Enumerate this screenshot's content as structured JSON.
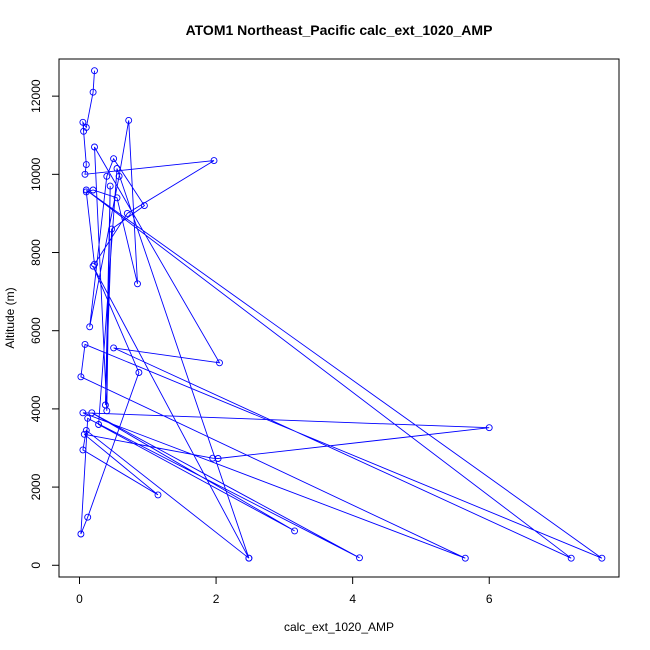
{
  "chart_data": {
    "type": "line",
    "title": "ATOM1 Northeast_Pacific calc_ext_1020_AMP",
    "xlabel": "calc_ext_1020_AMP",
    "ylabel": "Altitude (m)",
    "xlim": [
      -0.3,
      7.9
    ],
    "ylim": [
      -300,
      12950
    ],
    "xticks": [
      0,
      2,
      4,
      6
    ],
    "yticks": [
      0,
      2000,
      4000,
      6000,
      8000,
      10000,
      12000
    ],
    "grid": false,
    "legend": "none",
    "color": "#0000ff",
    "markers": "open-circle",
    "series": [
      {
        "points": [
          [
            0.22,
            12650
          ],
          [
            0.2,
            12100
          ],
          [
            0.1,
            11200
          ],
          [
            0.05,
            11330
          ],
          [
            0.06,
            11100
          ],
          [
            0.1,
            10250
          ],
          [
            0.08,
            10000
          ],
          [
            1.97,
            10350
          ],
          [
            0.7,
            9000
          ],
          [
            0.22,
            7700
          ],
          [
            0.1,
            9550
          ],
          [
            0.2,
            9600
          ],
          [
            0.55,
            9400
          ],
          [
            0.85,
            7200
          ],
          [
            0.72,
            11380
          ],
          [
            0.58,
            9950
          ],
          [
            0.15,
            6100
          ],
          [
            0.4,
            9950
          ],
          [
            0.5,
            10400
          ],
          [
            0.95,
            9200
          ],
          [
            0.47,
            8600
          ],
          [
            0.38,
            4100
          ],
          [
            0.45,
            9700
          ],
          [
            0.4,
            3950
          ],
          [
            0.22,
            10700
          ],
          [
            2.05,
            5180
          ],
          [
            0.5,
            5560
          ],
          [
            7.2,
            180
          ],
          [
            0.1,
            9600
          ],
          [
            7.65,
            180
          ],
          [
            0.08,
            5650
          ],
          [
            0.02,
            4820
          ],
          [
            5.65,
            180
          ],
          [
            0.05,
            3900
          ],
          [
            6.0,
            3520
          ],
          [
            2.03,
            2730
          ],
          [
            1.95,
            2740
          ],
          [
            0.07,
            3350
          ],
          [
            1.15,
            1800
          ],
          [
            0.05,
            2950
          ],
          [
            0.1,
            3450
          ],
          [
            2.48,
            180
          ],
          [
            0.2,
            7650
          ],
          [
            0.87,
            4930
          ],
          [
            0.12,
            1230
          ],
          [
            0.02,
            800
          ],
          [
            0.12,
            3760
          ],
          [
            4.1,
            190
          ],
          [
            0.18,
            3900
          ],
          [
            3.15,
            880
          ],
          [
            0.28,
            3600
          ],
          [
            0.55,
            10150
          ],
          [
            2.48,
            180
          ]
        ]
      }
    ]
  }
}
